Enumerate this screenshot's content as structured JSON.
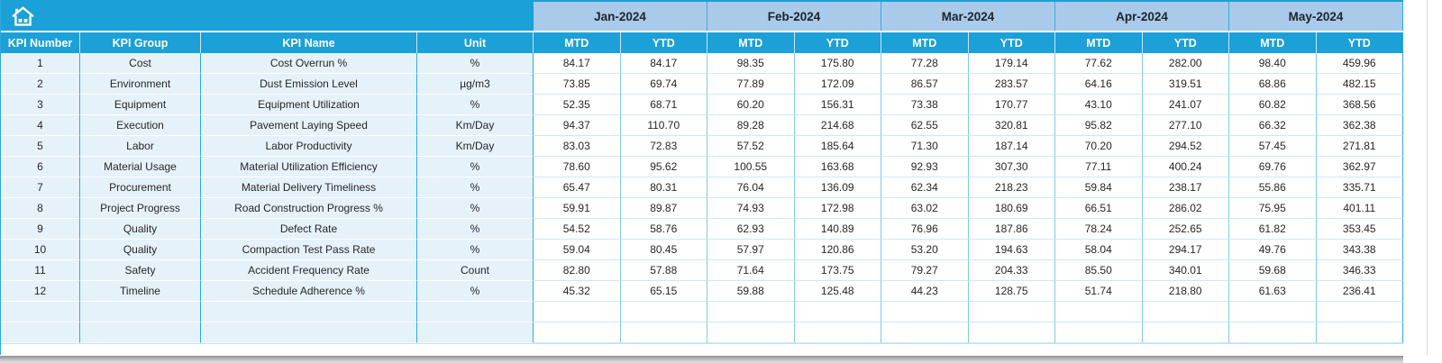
{
  "table": {
    "left_headers": [
      "KPI Number",
      "KPI Group",
      "KPI Name",
      "Unit"
    ],
    "months": [
      {
        "label": "Jan-2024",
        "sub": [
          "MTD",
          "YTD"
        ]
      },
      {
        "label": "Feb-2024",
        "sub": [
          "MTD",
          "YTD"
        ]
      },
      {
        "label": "Mar-2024",
        "sub": [
          "MTD",
          "YTD"
        ]
      },
      {
        "label": "Apr-2024",
        "sub": [
          "MTD",
          "YTD"
        ]
      },
      {
        "label": "May-2024",
        "sub": [
          "MTD",
          "YTD"
        ]
      }
    ],
    "rows": [
      {
        "kpi_number": "1",
        "kpi_group": "Cost",
        "kpi_name": "Cost Overrun %",
        "unit": "%",
        "values": [
          "84.17",
          "84.17",
          "98.35",
          "175.80",
          "77.28",
          "179.14",
          "77.62",
          "282.00",
          "98.40",
          "459.96"
        ]
      },
      {
        "kpi_number": "2",
        "kpi_group": "Environment",
        "kpi_name": "Dust Emission Level",
        "unit": "µg/m3",
        "values": [
          "73.85",
          "69.74",
          "77.89",
          "172.09",
          "86.57",
          "283.57",
          "64.16",
          "319.51",
          "68.86",
          "482.15"
        ]
      },
      {
        "kpi_number": "3",
        "kpi_group": "Equipment",
        "kpi_name": "Equipment Utilization",
        "unit": "%",
        "values": [
          "52.35",
          "68.71",
          "60.20",
          "156.31",
          "73.38",
          "170.77",
          "43.10",
          "241.07",
          "60.82",
          "368.56"
        ]
      },
      {
        "kpi_number": "4",
        "kpi_group": "Execution",
        "kpi_name": "Pavement Laying Speed",
        "unit": "Km/Day",
        "values": [
          "94.37",
          "110.70",
          "89.28",
          "214.68",
          "62.55",
          "320.81",
          "95.82",
          "277.10",
          "66.32",
          "362.38"
        ]
      },
      {
        "kpi_number": "5",
        "kpi_group": "Labor",
        "kpi_name": "Labor Productivity",
        "unit": "Km/Day",
        "values": [
          "83.03",
          "72.83",
          "57.52",
          "185.64",
          "71.30",
          "187.14",
          "70.20",
          "294.52",
          "57.45",
          "271.81"
        ]
      },
      {
        "kpi_number": "6",
        "kpi_group": "Material Usage",
        "kpi_name": "Material Utilization Efficiency",
        "unit": "%",
        "values": [
          "78.60",
          "95.62",
          "100.55",
          "163.68",
          "92.93",
          "307.30",
          "77.11",
          "400.24",
          "69.76",
          "362.97"
        ]
      },
      {
        "kpi_number": "7",
        "kpi_group": "Procurement",
        "kpi_name": "Material Delivery Timeliness",
        "unit": "%",
        "values": [
          "65.47",
          "80.31",
          "76.04",
          "136.09",
          "62.34",
          "218.23",
          "59.84",
          "238.17",
          "55.86",
          "335.71"
        ]
      },
      {
        "kpi_number": "8",
        "kpi_group": "Project Progress",
        "kpi_name": "Road Construction Progress %",
        "unit": "%",
        "values": [
          "59.91",
          "89.87",
          "74.93",
          "172.98",
          "63.02",
          "180.69",
          "66.51",
          "286.02",
          "75.95",
          "401.11"
        ]
      },
      {
        "kpi_number": "9",
        "kpi_group": "Quality",
        "kpi_name": "Defect Rate",
        "unit": "%",
        "values": [
          "54.52",
          "58.76",
          "62.93",
          "140.89",
          "76.96",
          "187.86",
          "78.24",
          "252.65",
          "61.82",
          "353.45"
        ]
      },
      {
        "kpi_number": "10",
        "kpi_group": "Quality",
        "kpi_name": "Compaction Test Pass Rate",
        "unit": "%",
        "values": [
          "59.04",
          "80.45",
          "57.97",
          "120.86",
          "53.20",
          "194.63",
          "58.04",
          "294.17",
          "49.76",
          "343.38"
        ]
      },
      {
        "kpi_number": "11",
        "kpi_group": "Safety",
        "kpi_name": "Accident Frequency Rate",
        "unit": "Count",
        "values": [
          "82.80",
          "57.88",
          "71.64",
          "173.75",
          "79.27",
          "204.33",
          "85.50",
          "340.01",
          "59.68",
          "346.33"
        ]
      },
      {
        "kpi_number": "12",
        "kpi_group": "Timeline",
        "kpi_name": "Schedule Adherence %",
        "unit": "%",
        "values": [
          "45.32",
          "65.15",
          "59.88",
          "125.48",
          "44.23",
          "128.75",
          "51.74",
          "218.80",
          "61.63",
          "236.41"
        ]
      }
    ],
    "empty_rows": 2
  },
  "colors": {
    "header_cyan": "#1BA0D7",
    "month_blue": "#A9CAE9",
    "left_cell_tint": "#E6F2FA",
    "grid_cyan": "#2EA9DC"
  }
}
